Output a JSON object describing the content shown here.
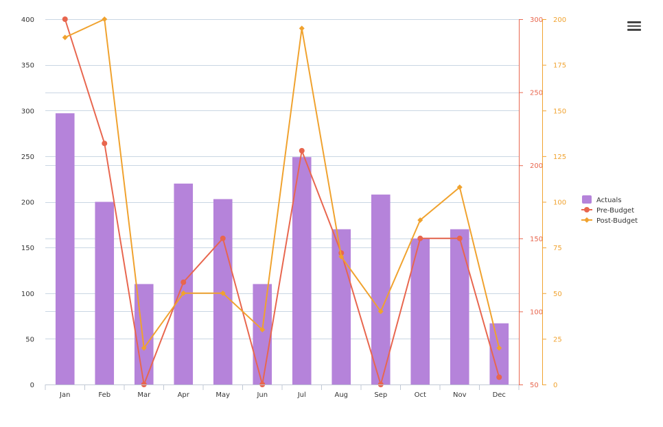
{
  "chart_data": {
    "type": "bar",
    "categories": [
      "Jan",
      "Feb",
      "Mar",
      "Apr",
      "May",
      "Jun",
      "Jul",
      "Aug",
      "Sep",
      "Oct",
      "Nov",
      "Dec"
    ],
    "series": [
      {
        "name": "Actuals",
        "type": "bar",
        "axis": "left",
        "color": "#b583da",
        "values": [
          297,
          200,
          110,
          220,
          203,
          110,
          249,
          170,
          208,
          160,
          170,
          67
        ]
      },
      {
        "name": "Pre-Budget",
        "type": "line",
        "axis": "right1",
        "color": "#e8664e",
        "values": [
          300,
          215,
          50,
          120,
          150,
          50,
          210,
          140,
          50,
          150,
          150,
          55
        ]
      },
      {
        "name": "Post-Budget",
        "type": "line",
        "axis": "right2",
        "color": "#f0a22e",
        "values": [
          190,
          200,
          20,
          50,
          50,
          30,
          195,
          70,
          40,
          90,
          108,
          20
        ]
      }
    ],
    "axes": {
      "left": {
        "min": 0,
        "max": 400,
        "ticks": [
          0,
          50,
          100,
          150,
          200,
          250,
          300,
          350,
          400
        ],
        "color": "#333333"
      },
      "right1": {
        "min": 50,
        "max": 300,
        "ticks": [
          50,
          100,
          150,
          200,
          250,
          300
        ],
        "color": "#e8664e"
      },
      "right2": {
        "min": 0,
        "max": 200,
        "ticks": [
          0,
          25,
          50,
          75,
          100,
          125,
          150,
          175,
          200
        ],
        "color": "#f0a22e"
      }
    },
    "grid": true,
    "legend_position": "right",
    "legend": [
      "Actuals",
      "Pre-Budget",
      "Post-Budget"
    ]
  },
  "toolbar": {
    "menu_icon": "hamburger-menu-icon"
  }
}
